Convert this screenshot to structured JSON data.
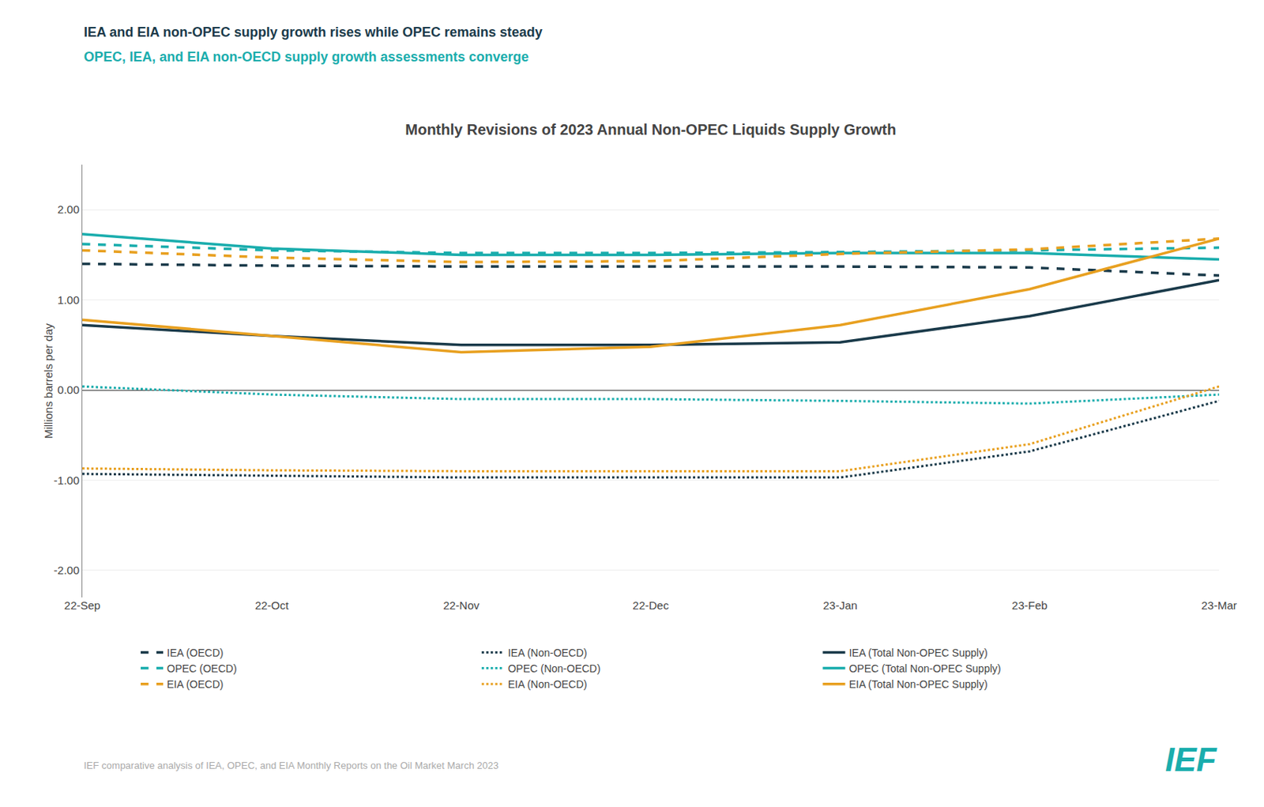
{
  "chart_data": {
    "type": "line",
    "title": "Monthly Revisions of 2023 Annual Non-OPEC Liquids Supply Growth",
    "y_label": "Millions barrels per day",
    "annotations": [
      {
        "text": "IEA and EIA non-OPEC supply growth rises while OPEC remains steady",
        "color": "#1a3a4a"
      },
      {
        "text": "OPEC, IEA, and EIA non-OECD supply growth assessments converge",
        "color": "#1aadad"
      },
      {
        "text": "IEF comparative analysis of IEA, OPEC, and EIA Monthly Reports on the Oil Market March 2023",
        "color": "#aaaaaa"
      },
      {
        "text": "IEF",
        "color": "#1aadad"
      }
    ],
    "categories": [
      "22-Sep",
      "22-Oct",
      "22-Nov",
      "22-Dec",
      "23-Jan",
      "23-Feb",
      "23-Mar"
    ],
    "series": [
      {
        "name": "IEA (OECD)",
        "color": "#1a3a4a",
        "line_style": "dashed",
        "values": [
          1.4,
          1.38,
          1.37,
          1.37,
          1.37,
          1.36,
          1.27
        ]
      },
      {
        "name": "IEA (Non-OECD)",
        "color": "#1a3a4a",
        "line_style": "dotted",
        "values": [
          -0.93,
          -0.95,
          -0.97,
          -0.97,
          -0.97,
          -0.68,
          -0.12
        ]
      },
      {
        "name": "IEA (Total Non-OPEC Supply)",
        "color": "#1a3a4a",
        "line_style": "solid",
        "values": [
          0.72,
          0.6,
          0.5,
          0.5,
          0.53,
          0.82,
          1.22
        ]
      },
      {
        "name": "OPEC (OECD)",
        "color": "#1aadad",
        "line_style": "dashed",
        "values": [
          1.62,
          1.55,
          1.52,
          1.52,
          1.53,
          1.55,
          1.58
        ]
      },
      {
        "name": "OPEC (Non-OECD)",
        "color": "#1aadad",
        "line_style": "dotted",
        "values": [
          0.04,
          -0.05,
          -0.1,
          -0.1,
          -0.12,
          -0.15,
          -0.05
        ]
      },
      {
        "name": "OPEC (Total Non-OPEC Supply)",
        "color": "#1aadad",
        "line_style": "solid",
        "values": [
          1.73,
          1.57,
          1.5,
          1.5,
          1.52,
          1.52,
          1.45
        ]
      },
      {
        "name": "EIA (OECD)",
        "color": "#e8a020",
        "line_style": "dashed",
        "values": [
          1.55,
          1.47,
          1.42,
          1.43,
          1.51,
          1.56,
          1.68
        ]
      },
      {
        "name": "EIA (Non-OECD)",
        "color": "#e8a020",
        "line_style": "dotted",
        "values": [
          -0.87,
          -0.89,
          -0.9,
          -0.9,
          -0.9,
          -0.6,
          0.04
        ]
      },
      {
        "name": "EIA (Total Non-OPEC Supply)",
        "color": "#e8a020",
        "line_style": "solid",
        "values": [
          0.78,
          0.6,
          0.42,
          0.48,
          0.72,
          1.12,
          1.68
        ]
      }
    ],
    "ylim": [
      -2.3,
      2.5
    ],
    "yticks": [
      {
        "value": -2.0,
        "label": "-2.00"
      },
      {
        "value": -1.0,
        "label": "-1.00"
      },
      {
        "value": 0.0,
        "label": "0.00"
      },
      {
        "value": 1.0,
        "label": "1.00"
      },
      {
        "value": 2.0,
        "label": "2.00"
      }
    ],
    "grid": true,
    "legend": "bottom"
  }
}
